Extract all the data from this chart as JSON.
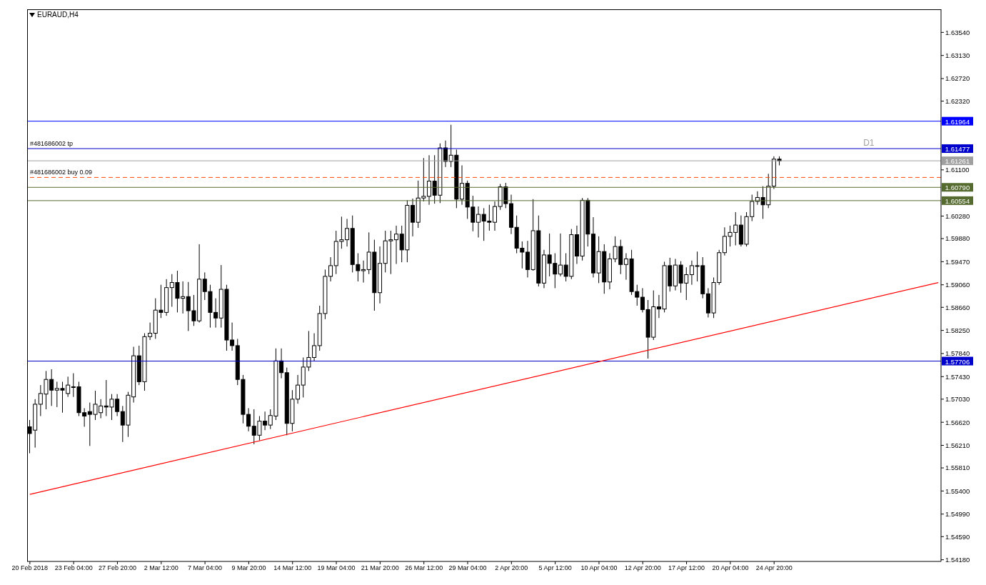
{
  "chart_data": {
    "type": "candlestick",
    "title": "EURAUD,H4",
    "categories": [
      "20 Feb 2018",
      null,
      null,
      null,
      null,
      null,
      null,
      null,
      "23 Feb 04:00",
      null,
      null,
      null,
      null,
      null,
      null,
      null,
      "27 Feb 20:00",
      null,
      null,
      null,
      null,
      null,
      null,
      null,
      "2 Mar 12:00",
      null,
      null,
      null,
      null,
      null,
      null,
      null,
      "7 Mar 04:00",
      null,
      null,
      null,
      null,
      null,
      null,
      null,
      "9 Mar 20:00",
      null,
      null,
      null,
      null,
      null,
      null,
      null,
      "14 Mar 12:00",
      null,
      null,
      null,
      null,
      null,
      null,
      null,
      "19 Mar 04:00",
      null,
      null,
      null,
      null,
      null,
      null,
      null,
      "21 Mar 20:00",
      null,
      null,
      null,
      null,
      null,
      null,
      null,
      "26 Mar 12:00",
      null,
      null,
      null,
      null,
      null,
      null,
      null,
      "29 Mar 04:00",
      null,
      null,
      null,
      null,
      null,
      null,
      null,
      "2 Apr 20:00",
      null,
      null,
      null,
      null,
      null,
      null,
      null,
      "5 Apr 12:00",
      null,
      null,
      null,
      null,
      null,
      null,
      null,
      "10 Apr 04:00",
      null,
      null,
      null,
      null,
      null,
      null,
      null,
      "12 Apr 20:00",
      null,
      null,
      null,
      null,
      null,
      null,
      null,
      "17 Apr 12:00",
      null,
      null,
      null,
      null,
      null,
      null,
      null,
      "20 Apr 04:00",
      null,
      null,
      null,
      null,
      null,
      null,
      null,
      "24 Apr 20:00",
      null,
      null,
      null,
      null,
      null,
      null,
      null,
      null,
      null,
      null,
      null,
      null,
      null,
      null,
      null,
      null,
      null,
      null,
      null,
      null,
      null,
      null,
      null,
      null,
      null,
      null,
      null,
      null,
      null,
      null
    ],
    "ohlc": [
      [
        1.5654,
        1.5666,
        1.5607,
        1.5642
      ],
      [
        1.5648,
        1.5703,
        1.5617,
        1.5694
      ],
      [
        1.5694,
        1.5728,
        1.5673,
        1.5713
      ],
      [
        1.5712,
        1.5753,
        1.5685,
        1.5738
      ],
      [
        1.5738,
        1.5756,
        1.5691,
        1.5719
      ],
      [
        1.5719,
        1.5734,
        1.5689,
        1.5722
      ],
      [
        1.5722,
        1.5734,
        1.5679,
        1.5719
      ],
      [
        1.5713,
        1.5743,
        1.5707,
        1.5728
      ],
      [
        1.5724,
        1.5749,
        1.5707,
        1.5725
      ],
      [
        1.5725,
        1.5734,
        1.5673,
        1.5679
      ],
      [
        1.5679,
        1.5687,
        1.5654,
        1.5673
      ],
      [
        1.5681,
        1.5697,
        1.562,
        1.5676
      ],
      [
        1.5676,
        1.5718,
        1.5666,
        1.5694
      ],
      [
        1.5679,
        1.5703,
        1.5669,
        1.5691
      ],
      [
        1.5691,
        1.5737,
        1.5673,
        1.5689
      ],
      [
        1.5689,
        1.5712,
        1.5666,
        1.5703
      ],
      [
        1.5703,
        1.5712,
        1.5673,
        1.5681
      ],
      [
        1.5681,
        1.5691,
        1.5627,
        1.5657
      ],
      [
        1.5657,
        1.5716,
        1.5636,
        1.571
      ],
      [
        1.5707,
        1.5796,
        1.5697,
        1.578
      ],
      [
        1.578,
        1.5798,
        1.5728,
        1.5734
      ],
      [
        1.5734,
        1.582,
        1.5718,
        1.5814
      ],
      [
        1.5814,
        1.5839,
        1.5808,
        1.582
      ],
      [
        1.582,
        1.5882,
        1.581,
        1.5861
      ],
      [
        1.5861,
        1.5906,
        1.5847,
        1.5857
      ],
      [
        1.5857,
        1.5916,
        1.5851,
        1.5901
      ],
      [
        1.5901,
        1.5925,
        1.5867,
        1.591
      ],
      [
        1.591,
        1.5931,
        1.5857,
        1.5882
      ],
      [
        1.5882,
        1.5912,
        1.5855,
        1.5885
      ],
      [
        1.5885,
        1.5911,
        1.5824,
        1.586
      ],
      [
        1.586,
        1.5888,
        1.5833,
        1.5842
      ],
      [
        1.5842,
        1.5978,
        1.5839,
        1.5916
      ],
      [
        1.5916,
        1.5928,
        1.5879,
        1.5894
      ],
      [
        1.5894,
        1.5906,
        1.583,
        1.5857
      ],
      [
        1.5857,
        1.5882,
        1.583,
        1.5847
      ],
      [
        1.5847,
        1.5941,
        1.583,
        1.5898
      ],
      [
        1.5898,
        1.5906,
        1.5789,
        1.5808
      ],
      [
        1.5808,
        1.5839,
        1.5789,
        1.5798
      ],
      [
        1.5798,
        1.581,
        1.5728,
        1.5738
      ],
      [
        1.5738,
        1.5746,
        1.566,
        1.5676
      ],
      [
        1.5676,
        1.5687,
        1.5646,
        1.5655
      ],
      [
        1.5655,
        1.5685,
        1.5623,
        1.5639
      ],
      [
        1.5639,
        1.5673,
        1.563,
        1.5664
      ],
      [
        1.5664,
        1.5681,
        1.5648,
        1.5657
      ],
      [
        1.5657,
        1.5685,
        1.565,
        1.5674
      ],
      [
        1.5673,
        1.5793,
        1.5666,
        1.5771
      ],
      [
        1.5771,
        1.5793,
        1.574,
        1.575
      ],
      [
        1.575,
        1.5759,
        1.5639,
        1.566
      ],
      [
        1.566,
        1.5719,
        1.5646,
        1.5703
      ],
      [
        1.5703,
        1.5746,
        1.5695,
        1.5728
      ],
      [
        1.5728,
        1.5777,
        1.5706,
        1.576
      ],
      [
        1.576,
        1.5824,
        1.5753,
        1.5777
      ],
      [
        1.5777,
        1.582,
        1.5771,
        1.5798
      ],
      [
        1.5798,
        1.5869,
        1.5789,
        1.5855
      ],
      [
        1.5855,
        1.5933,
        1.5845,
        1.5921
      ],
      [
        1.5921,
        1.5955,
        1.5912,
        1.594
      ],
      [
        1.594,
        1.6002,
        1.5925,
        1.5983
      ],
      [
        1.5983,
        1.6027,
        1.597,
        1.5986
      ],
      [
        1.5986,
        1.6023,
        1.5974,
        1.6006
      ],
      [
        1.6006,
        1.6029,
        1.5928,
        1.5942
      ],
      [
        1.5942,
        1.5962,
        1.5912,
        1.5931
      ],
      [
        1.5931,
        1.5949,
        1.591,
        1.5933
      ],
      [
        1.5933,
        1.5999,
        1.5925,
        1.5964
      ],
      [
        1.5964,
        1.5986,
        1.586,
        1.5892
      ],
      [
        1.5892,
        1.5974,
        1.5873,
        1.5944
      ],
      [
        1.5944,
        1.6002,
        1.5928,
        1.5984
      ],
      [
        1.5984,
        1.6002,
        1.5925,
        1.5986
      ],
      [
        1.5986,
        1.6011,
        1.5943,
        1.5996
      ],
      [
        1.5996,
        1.6011,
        1.5946,
        1.5968
      ],
      [
        1.5968,
        1.6056,
        1.5946,
        1.6047
      ],
      [
        1.6047,
        1.6059,
        1.5992,
        1.6017
      ],
      [
        1.6017,
        1.6091,
        1.6007,
        1.606
      ],
      [
        1.606,
        1.6131,
        1.6054,
        1.6063
      ],
      [
        1.6063,
        1.6136,
        1.6048,
        1.609
      ],
      [
        1.609,
        1.6136,
        1.605,
        1.6065
      ],
      [
        1.6065,
        1.6157,
        1.6051,
        1.6149
      ],
      [
        1.6149,
        1.6162,
        1.6115,
        1.6125
      ],
      [
        1.6125,
        1.619,
        1.6115,
        1.6136
      ],
      [
        1.6136,
        1.6146,
        1.6042,
        1.6058
      ],
      [
        1.6058,
        1.6118,
        1.6048,
        1.6086
      ],
      [
        1.6086,
        1.6091,
        1.6023,
        1.6044
      ],
      [
        1.6044,
        1.6064,
        1.6001,
        1.6017
      ],
      [
        1.6017,
        1.6045,
        1.599,
        1.6031
      ],
      [
        1.6031,
        1.6042,
        1.5984,
        1.6019
      ],
      [
        1.6019,
        1.6048,
        1.6002,
        1.6017
      ],
      [
        1.6017,
        1.6054,
        1.6002,
        1.6045
      ],
      [
        1.6045,
        1.6085,
        1.6039,
        1.608
      ],
      [
        1.608,
        1.6087,
        1.6042,
        1.605
      ],
      [
        1.605,
        1.6066,
        1.5996,
        1.6008
      ],
      [
        1.6008,
        1.6029,
        1.5962,
        1.5971
      ],
      [
        1.5971,
        1.5983,
        1.5935,
        1.5964
      ],
      [
        1.5964,
        1.5984,
        1.5919,
        1.5933
      ],
      [
        1.5933,
        1.6058,
        1.5931,
        1.6002
      ],
      [
        1.6002,
        1.6029,
        1.5903,
        1.5909
      ],
      [
        1.5909,
        1.5968,
        1.59,
        1.5959
      ],
      [
        1.5959,
        1.5997,
        1.5921,
        1.5944
      ],
      [
        1.5944,
        1.5962,
        1.59,
        1.5925
      ],
      [
        1.5925,
        1.5997,
        1.5921,
        1.5941
      ],
      [
        1.5941,
        1.5962,
        1.5912,
        1.5921
      ],
      [
        1.5921,
        1.6005,
        1.5916,
        1.5995
      ],
      [
        1.5995,
        1.6011,
        1.5943,
        1.5957
      ],
      [
        1.5957,
        1.606,
        1.5949,
        1.6056
      ],
      [
        1.6056,
        1.606,
        1.5974,
        1.5996
      ],
      [
        1.5996,
        1.6026,
        1.5919,
        1.5927
      ],
      [
        1.5927,
        1.5992,
        1.5909,
        1.5965
      ],
      [
        1.5965,
        1.5978,
        1.589,
        1.5911
      ],
      [
        1.5911,
        1.5962,
        1.5898,
        1.5952
      ],
      [
        1.5952,
        1.5992,
        1.5946,
        1.5974
      ],
      [
        1.5974,
        1.5986,
        1.5925,
        1.5942
      ],
      [
        1.5942,
        1.5962,
        1.5915,
        1.5952
      ],
      [
        1.5952,
        1.5968,
        1.5888,
        1.5894
      ],
      [
        1.5894,
        1.5906,
        1.5869,
        1.5884
      ],
      [
        1.5884,
        1.59,
        1.5857,
        1.5862
      ],
      [
        1.5862,
        1.5879,
        1.5775,
        1.5813
      ],
      [
        1.5813,
        1.5896,
        1.5808,
        1.5867
      ],
      [
        1.5867,
        1.5888,
        1.5847,
        1.5863
      ],
      [
        1.5863,
        1.5947,
        1.5857,
        1.594
      ],
      [
        1.594,
        1.5954,
        1.5894,
        1.5904
      ],
      [
        1.5904,
        1.5952,
        1.5896,
        1.5941
      ],
      [
        1.5941,
        1.5948,
        1.5892,
        1.5909
      ],
      [
        1.5909,
        1.5937,
        1.5879,
        1.5924
      ],
      [
        1.5924,
        1.5949,
        1.5906,
        1.594
      ],
      [
        1.594,
        1.5965,
        1.5912,
        1.594
      ],
      [
        1.594,
        1.5955,
        1.5882,
        1.589
      ],
      [
        1.589,
        1.59,
        1.5848,
        1.5856
      ],
      [
        1.5856,
        1.5919,
        1.5847,
        1.591
      ],
      [
        1.591,
        1.5968,
        1.5906,
        1.5963
      ],
      [
        1.5963,
        1.6008,
        1.5958,
        1.5992
      ],
      [
        1.5992,
        1.6011,
        1.5974,
        1.5999
      ],
      [
        1.5999,
        1.6035,
        1.5976,
        1.6012
      ],
      [
        1.6012,
        1.6029,
        1.5974,
        1.5978
      ],
      [
        1.5978,
        1.6035,
        1.5974,
        1.6027
      ],
      [
        1.6027,
        1.6066,
        1.6019,
        1.6054
      ],
      [
        1.6054,
        1.6072,
        1.6048,
        1.6061
      ],
      [
        1.6061,
        1.6081,
        1.6023,
        1.6048
      ],
      [
        1.6048,
        1.6103,
        1.6042,
        1.6081
      ],
      [
        1.6081,
        1.6134,
        1.6076,
        1.6129
      ],
      [
        1.6129,
        1.6134,
        1.6118,
        1.6126
      ],
      null,
      null,
      null,
      null,
      null,
      null,
      null,
      null,
      null,
      null,
      null,
      null,
      null,
      null,
      null,
      null,
      null,
      null,
      null,
      null,
      null,
      null,
      null,
      null,
      null,
      null,
      null,
      null,
      null
    ],
    "series": [
      {
        "type": "line",
        "color": "#ff0000",
        "values": [
          1.5534,
          null,
          null,
          null,
          null,
          null,
          null,
          null,
          null,
          null,
          null,
          null,
          null,
          null,
          null,
          null,
          null,
          null,
          null,
          null,
          null,
          null,
          null,
          null,
          null,
          null,
          null,
          null,
          null,
          null,
          null,
          null,
          null,
          null,
          null,
          null,
          null,
          null,
          null,
          null,
          null,
          null,
          null,
          null,
          null,
          null,
          null,
          null,
          null,
          null,
          null,
          null,
          null,
          null,
          null,
          null,
          null,
          null,
          null,
          null,
          null,
          null,
          null,
          null,
          null,
          null,
          null,
          null,
          null,
          null,
          null,
          null,
          null,
          null,
          null,
          null,
          null,
          null,
          null,
          null,
          null,
          null,
          null,
          null,
          null,
          null,
          null,
          null,
          null,
          null,
          null,
          null,
          null,
          null,
          null,
          null,
          null,
          null,
          null,
          null,
          null,
          null,
          null,
          null,
          null,
          null,
          null,
          null,
          null,
          null,
          null,
          null,
          null,
          null,
          null,
          null,
          null,
          null,
          null,
          null,
          null,
          null,
          null,
          null,
          null,
          null,
          null,
          null,
          null,
          null,
          null,
          null,
          null,
          null,
          null,
          null,
          null,
          null,
          null,
          null,
          null,
          null,
          null,
          null,
          null,
          null,
          null,
          null,
          null,
          null,
          null,
          null,
          null,
          null,
          null,
          null,
          null,
          null,
          null,
          null,
          null,
          null,
          null,
          null,
          null,
          null,
          1.591
        ]
      }
    ],
    "ylim": [
      1.5415,
      1.6395
    ],
    "yticks": [
      {
        "value": 1.6354,
        "label": "1.63540"
      },
      {
        "value": 1.6313,
        "label": "1.63130"
      },
      {
        "value": 1.6272,
        "label": "1.62720"
      },
      {
        "value": 1.6232,
        "label": "1.62320"
      },
      {
        "value": 1.611,
        "label": "1.61100"
      },
      {
        "value": 1.6028,
        "label": "1.60280"
      },
      {
        "value": 1.5988,
        "label": "1.59880"
      },
      {
        "value": 1.5947,
        "label": "1.59470"
      },
      {
        "value": 1.5906,
        "label": "1.59060"
      },
      {
        "value": 1.5866,
        "label": "1.58660"
      },
      {
        "value": 1.5825,
        "label": "1.58250"
      },
      {
        "value": 1.5784,
        "label": "1.57840"
      },
      {
        "value": 1.5743,
        "label": "1.57430"
      },
      {
        "value": 1.5703,
        "label": "1.57030"
      },
      {
        "value": 1.5662,
        "label": "1.56620"
      },
      {
        "value": 1.5621,
        "label": "1.56210"
      },
      {
        "value": 1.5581,
        "label": "1.55810"
      },
      {
        "value": 1.554,
        "label": "1.55400"
      },
      {
        "value": 1.5499,
        "label": "1.54990"
      },
      {
        "value": 1.5459,
        "label": "1.54590"
      },
      {
        "value": 1.5418,
        "label": "1.54180"
      }
    ],
    "ref_lines": [
      {
        "axis": "y",
        "value": 1.61964,
        "label": "1.61964",
        "color": "#0000ff"
      },
      {
        "axis": "y",
        "value": 1.61477,
        "label": "1.61477",
        "color": "#0000cd"
      },
      {
        "axis": "y",
        "value": 1.61261,
        "label": "1.61261",
        "color": "#a0a0a0"
      },
      {
        "axis": "y",
        "value": 1.60966,
        "color": "#ff4500",
        "line_style": "dashed"
      },
      {
        "axis": "y",
        "value": 1.6079,
        "label": "1.60790",
        "color": "#556b2f"
      },
      {
        "axis": "y",
        "value": 1.60554,
        "label": "1.60554",
        "color": "#556b2f"
      },
      {
        "axis": "y",
        "value": 1.57706,
        "label": "1.57706",
        "color": "#0000cd"
      }
    ],
    "annotations": [
      {
        "text": "#481686002 tp",
        "y": 1.61477
      },
      {
        "text": "#481686002 buy 0.09",
        "y": 1.60966
      },
      "D1"
    ]
  }
}
